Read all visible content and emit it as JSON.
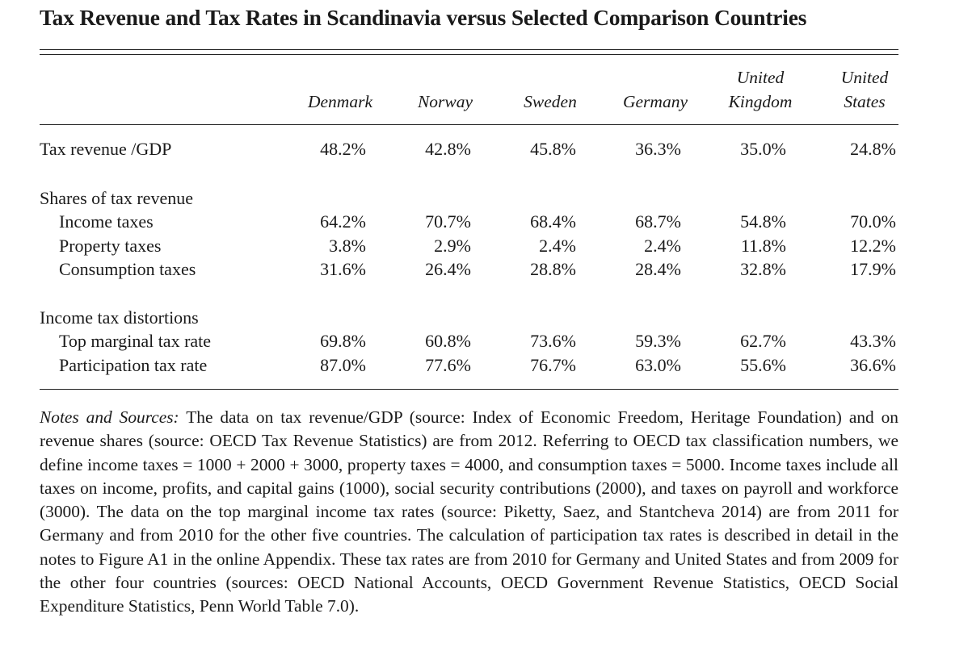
{
  "title": "Tax Revenue and Tax Rates in Scandinavia versus Selected Comparison Countries",
  "columns": [
    {
      "line1": "",
      "line2": "Denmark"
    },
    {
      "line1": "",
      "line2": "Norway"
    },
    {
      "line1": "",
      "line2": "Sweden"
    },
    {
      "line1": "",
      "line2": "Germany"
    },
    {
      "line1": "United",
      "line2": "Kingdom"
    },
    {
      "line1": "United",
      "line2": "States"
    }
  ],
  "rows": [
    {
      "label": "Tax revenue /GDP",
      "values": [
        "48.2%",
        "42.8%",
        "45.8%",
        "36.3%",
        "35.0%",
        "24.8%"
      ]
    },
    {
      "label": "Shares of tax revenue"
    },
    {
      "label": "Income taxes",
      "values": [
        "64.2%",
        "70.7%",
        "68.4%",
        "68.7%",
        "54.8%",
        "70.0%"
      ]
    },
    {
      "label": "Property taxes",
      "values": [
        "3.8%",
        "2.9%",
        "2.4%",
        "2.4%",
        "11.8%",
        "12.2%"
      ]
    },
    {
      "label": "Consumption taxes",
      "values": [
        "31.6%",
        "26.4%",
        "28.8%",
        "28.4%",
        "32.8%",
        "17.9%"
      ]
    },
    {
      "label": "Income tax distortions"
    },
    {
      "label": "Top marginal tax rate",
      "values": [
        "69.8%",
        "60.8%",
        "73.6%",
        "59.3%",
        "62.7%",
        "43.3%"
      ]
    },
    {
      "label": "Participation tax rate",
      "values": [
        "87.0%",
        "77.6%",
        "76.7%",
        "63.0%",
        "55.6%",
        "36.6%"
      ]
    }
  ],
  "notes": {
    "lead": "Notes and Sources:",
    "body": "The data on tax revenue/GDP (source: Index of Economic Freedom, Heritage Foundation) and on revenue shares (source: OECD Tax Revenue Statistics) are from 2012. Referring to OECD tax classification numbers, we define income taxes = 1000 + 2000 + 3000, property taxes = 4000, and consumption taxes = 5000. Income taxes include all taxes on income, profits, and capital gains (1000), social security contributions (2000), and taxes on payroll and workforce (3000). The data on the top marginal income tax rates (source: Piketty, Saez, and Stantcheva 2014) are from 2011 for Germany and from 2010 for the other five countries. The calculation of participation tax rates is described in detail in the notes to Figure A1 in the online Appendix. These tax rates are from 2010 for Germany and United States and from 2009 for the other four countries (sources: OECD National Accounts, OECD Government Revenue Statistics, OECD Social Expenditure Statistics, Penn World Table 7.0)."
  }
}
